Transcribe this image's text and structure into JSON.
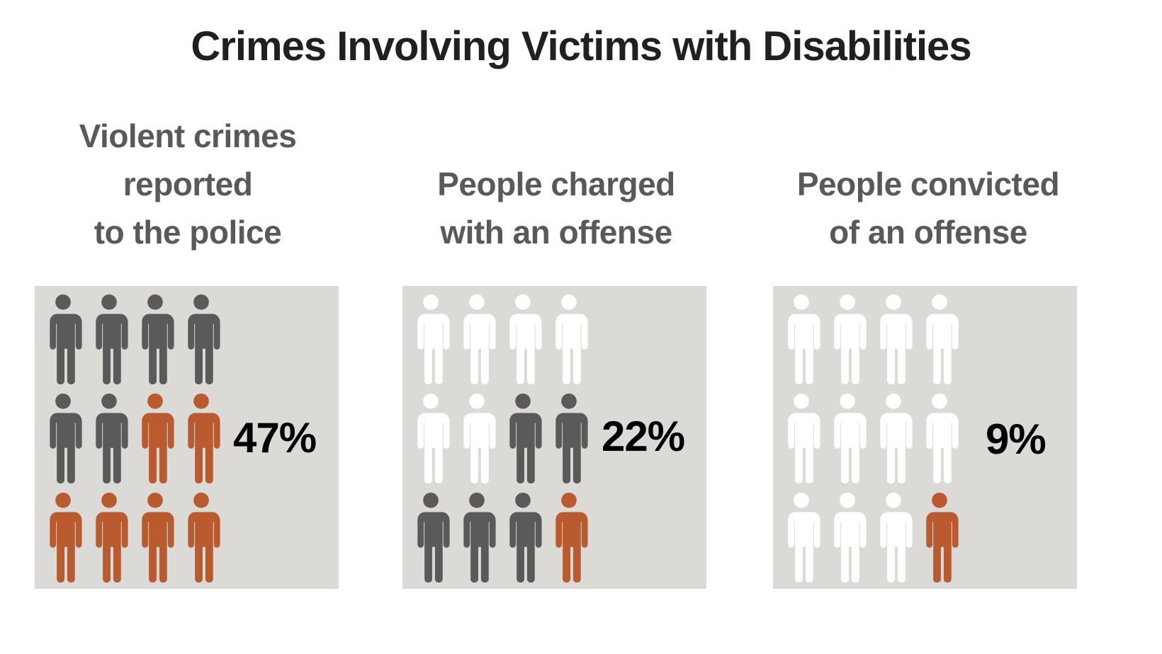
{
  "title": "Crimes Involving Victims with Disabilities",
  "colors": {
    "panel_bg": "#DBDAD6",
    "dark": "#5A5A5A",
    "orange": "#B95A2F",
    "white": "#FFFFFF"
  },
  "panels": [
    {
      "label": "Violent crimes\nreported\nto the police",
      "percent": "47%",
      "icons": [
        "dark",
        "dark",
        "dark",
        "dark",
        "dark",
        "dark",
        "orange",
        "orange",
        "orange",
        "orange",
        "orange",
        "orange"
      ]
    },
    {
      "label": "People charged\nwith an offense",
      "percent": "22%",
      "icons": [
        "white",
        "white",
        "white",
        "white",
        "white",
        "white",
        "dark",
        "dark",
        "dark",
        "dark",
        "dark",
        "orange"
      ]
    },
    {
      "label": "People convicted\nof an offense",
      "percent": "9%",
      "icons": [
        "white",
        "white",
        "white",
        "white",
        "white",
        "white",
        "white",
        "white",
        "white",
        "white",
        "white",
        "orange"
      ]
    }
  ],
  "chart_data": {
    "type": "table",
    "title": "Crimes Involving Victims with Disabilities",
    "chart_style": "pictograph (12 person icons per panel, 4 columns x 3 rows)",
    "categories": [
      "Violent crimes reported to the police",
      "People charged with an offense",
      "People convicted of an offense"
    ],
    "values": [
      47,
      22,
      9
    ],
    "unit": "%",
    "icon_counts": [
      {
        "category": "Violent crimes reported to the police",
        "dark": 6,
        "orange": 6,
        "white": 0
      },
      {
        "category": "People charged with an offense",
        "dark": 5,
        "orange": 1,
        "white": 6
      },
      {
        "category": "People convicted of an offense",
        "dark": 0,
        "orange": 1,
        "white": 11
      }
    ],
    "legend": "none",
    "grid": false
  }
}
